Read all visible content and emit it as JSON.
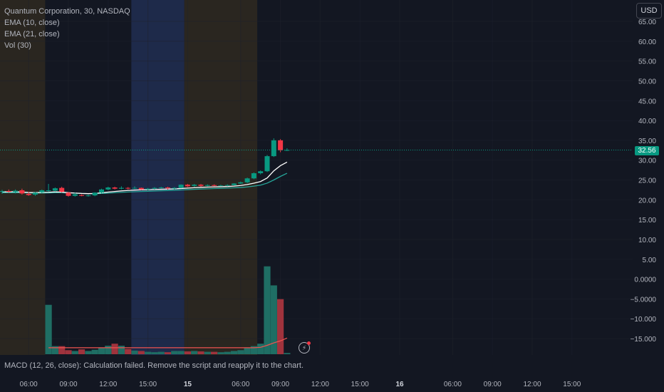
{
  "header": {
    "symbol_line": "Quantum Corporation, 30, NASDAQ",
    "ema10_label": "EMA (10, close)",
    "ema21_label": "EMA (21, close)",
    "vol_label": "Vol (30)",
    "currency": "USD"
  },
  "macd": {
    "message": "MACD (12, 26, close): Calculation failed. Remove the script and reapply it to the chart."
  },
  "last_price": "32.56",
  "colors": {
    "background": "#131722",
    "up": "#089981",
    "down": "#f23645",
    "ema_fast": "#ffffff",
    "ema_slow": "#26a69a",
    "vol_ma": "#ef5350",
    "session_pre": "#2a2620",
    "session_highlight": "#1e2a4a",
    "grid": "#1e222d"
  },
  "icons": {
    "alert": "lightning-bolt-icon"
  },
  "chart_data": {
    "type": "candlestick",
    "title": "Quantum Corporation, 30, NASDAQ",
    "price_axis": {
      "labels": [
        "65.00",
        "60.00",
        "55.00",
        "50.00",
        "45.00",
        "40.00",
        "35.00",
        "30.00",
        "25.00",
        "20.00",
        "15.00",
        "10.00",
        "5.00",
        "0.0000",
        "−5.0000",
        "−10.000",
        "−15.000"
      ],
      "values": [
        65,
        60,
        55,
        50,
        45,
        40,
        35,
        30,
        25,
        20,
        15,
        10,
        5,
        0,
        -5,
        -10,
        -15
      ],
      "range": [
        -17.5,
        66
      ]
    },
    "time_axis": {
      "labels": [
        {
          "text": "06:00",
          "bold": false,
          "slot": 4
        },
        {
          "text": "09:00",
          "bold": false,
          "slot": 10
        },
        {
          "text": "12:00",
          "bold": false,
          "slot": 16
        },
        {
          "text": "15:00",
          "bold": false,
          "slot": 22
        },
        {
          "text": "15",
          "bold": true,
          "slot": 28
        },
        {
          "text": "06:00",
          "bold": false,
          "slot": 36
        },
        {
          "text": "09:00",
          "bold": false,
          "slot": 42
        },
        {
          "text": "12:00",
          "bold": false,
          "slot": 48
        },
        {
          "text": "15:00",
          "bold": false,
          "slot": 54
        },
        {
          "text": "16",
          "bold": true,
          "slot": 60
        },
        {
          "text": "06:00",
          "bold": false,
          "slot": 68
        },
        {
          "text": "09:00",
          "bold": false,
          "slot": 74
        },
        {
          "text": "12:00",
          "bold": false,
          "slot": 80
        },
        {
          "text": "15:00",
          "bold": false,
          "slot": 86
        }
      ]
    },
    "sessions": [
      {
        "type": "pre",
        "from": -0.5,
        "to": 6.5
      },
      {
        "type": "highlight",
        "from": 19.5,
        "to": 27.5
      },
      {
        "type": "pre",
        "from": 27.5,
        "to": 38.5
      }
    ],
    "candles": [
      {
        "o": 22.0,
        "h": 22.5,
        "l": 21.5,
        "c": 22.2,
        "v": 0
      },
      {
        "o": 22.2,
        "h": 22.6,
        "l": 21.8,
        "c": 22.0,
        "v": 0
      },
      {
        "o": 22.0,
        "h": 22.6,
        "l": 21.6,
        "c": 22.3,
        "v": 0
      },
      {
        "o": 22.4,
        "h": 22.8,
        "l": 21.3,
        "c": 21.6,
        "v": 0
      },
      {
        "o": 21.5,
        "h": 22.0,
        "l": 21.0,
        "c": 21.2,
        "v": 0
      },
      {
        "o": 21.3,
        "h": 22.0,
        "l": 21.0,
        "c": 21.8,
        "v": 0
      },
      {
        "o": 21.9,
        "h": 22.6,
        "l": 21.6,
        "c": 22.4,
        "v": 0
      },
      {
        "o": 22.2,
        "h": 24.0,
        "l": 22.0,
        "c": 22.4,
        "v": 12.2
      },
      {
        "o": 22.3,
        "h": 23.1,
        "l": 22.0,
        "c": 22.9,
        "v": 2.0
      },
      {
        "o": 23.0,
        "h": 23.3,
        "l": 21.8,
        "c": 22.0,
        "v": 2.0
      },
      {
        "o": 21.8,
        "h": 22.0,
        "l": 20.8,
        "c": 21.0,
        "v": 1.0
      },
      {
        "o": 21.0,
        "h": 21.8,
        "l": 20.8,
        "c": 21.4,
        "v": 0.8
      },
      {
        "o": 21.2,
        "h": 21.4,
        "l": 20.9,
        "c": 21.0,
        "v": 1.2
      },
      {
        "o": 21.0,
        "h": 21.3,
        "l": 20.8,
        "c": 21.1,
        "v": 0.8
      },
      {
        "o": 21.1,
        "h": 21.9,
        "l": 20.9,
        "c": 21.8,
        "v": 1.1
      },
      {
        "o": 21.8,
        "h": 22.8,
        "l": 21.6,
        "c": 22.6,
        "v": 1.6
      },
      {
        "o": 22.6,
        "h": 23.3,
        "l": 22.4,
        "c": 23.1,
        "v": 2.1
      },
      {
        "o": 23.1,
        "h": 23.3,
        "l": 22.6,
        "c": 22.8,
        "v": 2.6
      },
      {
        "o": 22.8,
        "h": 23.4,
        "l": 22.6,
        "c": 23.0,
        "v": 2.1
      },
      {
        "o": 23.0,
        "h": 23.2,
        "l": 22.6,
        "c": 22.9,
        "v": 1.3
      },
      {
        "o": 22.9,
        "h": 23.4,
        "l": 22.7,
        "c": 23.0,
        "v": 0.9
      },
      {
        "o": 23.0,
        "h": 23.1,
        "l": 22.5,
        "c": 22.6,
        "v": 0.8
      },
      {
        "o": 22.6,
        "h": 23.0,
        "l": 22.4,
        "c": 22.8,
        "v": 0.6
      },
      {
        "o": 22.8,
        "h": 23.2,
        "l": 22.6,
        "c": 23.0,
        "v": 0.5
      },
      {
        "o": 23.0,
        "h": 23.3,
        "l": 22.8,
        "c": 23.1,
        "v": 0.6
      },
      {
        "o": 23.1,
        "h": 23.3,
        "l": 22.6,
        "c": 22.9,
        "v": 0.5
      },
      {
        "o": 22.9,
        "h": 23.2,
        "l": 22.6,
        "c": 23.0,
        "v": 0.8
      },
      {
        "o": 23.0,
        "h": 23.9,
        "l": 22.9,
        "c": 23.8,
        "v": 0.8
      },
      {
        "o": 23.8,
        "h": 24.0,
        "l": 23.2,
        "c": 23.4,
        "v": 0.7
      },
      {
        "o": 23.5,
        "h": 24.0,
        "l": 23.2,
        "c": 23.8,
        "v": 0.8
      },
      {
        "o": 23.8,
        "h": 24.0,
        "l": 23.3,
        "c": 23.5,
        "v": 0.7
      },
      {
        "o": 23.5,
        "h": 23.9,
        "l": 23.3,
        "c": 23.7,
        "v": 0.6
      },
      {
        "o": 23.7,
        "h": 23.9,
        "l": 23.4,
        "c": 23.5,
        "v": 0.6
      },
      {
        "o": 23.5,
        "h": 23.8,
        "l": 23.4,
        "c": 23.6,
        "v": 0.5
      },
      {
        "o": 23.6,
        "h": 23.9,
        "l": 23.4,
        "c": 23.7,
        "v": 0.6
      },
      {
        "o": 23.7,
        "h": 24.2,
        "l": 23.6,
        "c": 24.1,
        "v": 0.8
      },
      {
        "o": 24.1,
        "h": 24.6,
        "l": 24.0,
        "c": 24.4,
        "v": 1.0
      },
      {
        "o": 24.4,
        "h": 25.6,
        "l": 24.2,
        "c": 25.4,
        "v": 1.6
      },
      {
        "o": 25.4,
        "h": 26.9,
        "l": 25.2,
        "c": 26.7,
        "v": 2.0
      },
      {
        "o": 26.7,
        "h": 27.4,
        "l": 26.4,
        "c": 27.2,
        "v": 2.6
      },
      {
        "o": 27.2,
        "h": 31.3,
        "l": 27.0,
        "c": 31.0,
        "v": 21.7
      },
      {
        "o": 31.0,
        "h": 35.5,
        "l": 30.8,
        "c": 35.0,
        "v": 17.0
      },
      {
        "o": 35.0,
        "h": 35.3,
        "l": 32.0,
        "c": 32.5,
        "v": 13.6
      },
      {
        "o": 32.5,
        "h": 33.0,
        "l": 32.3,
        "c": 32.56,
        "v": 0.3
      }
    ],
    "ema10": [
      22.0,
      22.0,
      22.05,
      21.95,
      21.85,
      21.8,
      21.85,
      21.9,
      22.0,
      21.95,
      21.8,
      21.7,
      21.6,
      21.55,
      21.6,
      21.75,
      21.95,
      22.1,
      22.25,
      22.35,
      22.45,
      22.5,
      22.55,
      22.6,
      22.65,
      22.7,
      22.75,
      22.85,
      22.95,
      23.05,
      23.15,
      23.2,
      23.25,
      23.3,
      23.35,
      23.45,
      23.6,
      23.85,
      24.2,
      24.6,
      25.5,
      27.3,
      28.6,
      29.5
    ],
    "ema21": [
      21.8,
      21.8,
      21.82,
      21.8,
      21.75,
      21.72,
      21.72,
      21.75,
      21.8,
      21.78,
      21.72,
      21.67,
      21.6,
      21.55,
      21.55,
      21.6,
      21.68,
      21.78,
      21.88,
      21.96,
      22.04,
      22.1,
      22.16,
      22.22,
      22.28,
      22.34,
      22.4,
      22.48,
      22.56,
      22.64,
      22.72,
      22.78,
      22.84,
      22.9,
      22.96,
      23.02,
      23.1,
      23.25,
      23.45,
      23.7,
      24.2,
      25.0,
      25.9,
      26.7
    ],
    "volume_ma": [
      0,
      0,
      0,
      0,
      0,
      0,
      0,
      1.6,
      1.6,
      1.6,
      1.6,
      1.6,
      1.6,
      1.6,
      1.6,
      1.6,
      1.6,
      1.6,
      1.6,
      1.6,
      1.6,
      1.6,
      1.6,
      1.6,
      1.6,
      1.6,
      1.6,
      1.6,
      1.6,
      1.6,
      1.6,
      1.6,
      1.6,
      1.6,
      1.6,
      1.6,
      1.6,
      1.6,
      1.6,
      1.7,
      2.2,
      2.8,
      3.3,
      4.0
    ],
    "volume_scale_max": 22.0,
    "last_price": 32.56,
    "grid": true
  }
}
